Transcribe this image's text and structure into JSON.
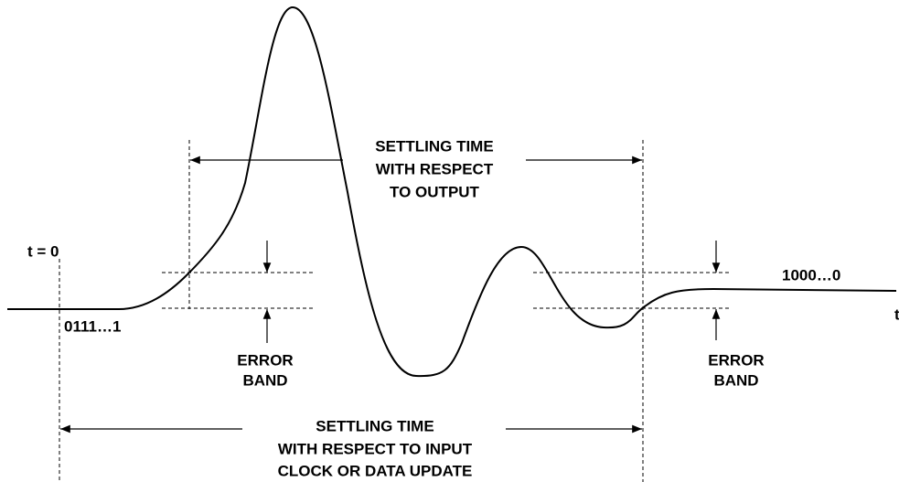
{
  "labels": {
    "t0": "t = 0",
    "start_code": "0111…1",
    "end_code": "1000…0",
    "time_axis": "t",
    "error_band_left": [
      "ERROR",
      "BAND"
    ],
    "error_band_right": [
      "ERROR",
      "BAND"
    ],
    "settling_output": [
      "SETTLING TIME",
      "WITH RESPECT",
      "TO OUTPUT"
    ],
    "settling_input": [
      "SETTLING TIME",
      "WITH RESPECT TO INPUT",
      "CLOCK OR DATA UPDATE"
    ]
  }
}
